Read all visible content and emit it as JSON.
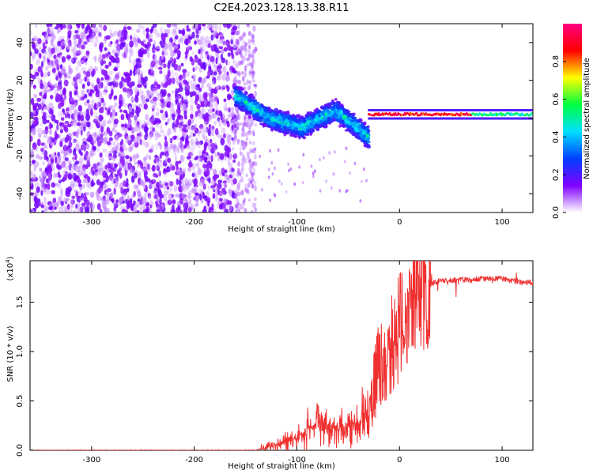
{
  "figure_title": "C2E4.2023.128.13.38.R11",
  "colors": {
    "series": "#f03030",
    "spectro_low": "#7b00ee",
    "spectro_mid": "#00e0d0",
    "spectro_high": "#ff2020"
  },
  "chart_data": [
    {
      "type": "heatmap",
      "title": "C2E4.2023.128.13.38.R11",
      "xlabel": "Height of straight line (km)",
      "ylabel": "Frequency (Hz)",
      "xlim": [
        -360,
        130
      ],
      "ylim": [
        -50,
        50
      ],
      "xticks": [
        -300,
        -200,
        -100,
        0,
        100
      ],
      "yticks": [
        -40,
        -20,
        0,
        20,
        40
      ],
      "grid": false,
      "colorbar": {
        "label": "Normalized spectral amplitude",
        "range": [
          0,
          1
        ],
        "ticks": [
          "0.0",
          "0.2",
          "0.4",
          "0.6",
          "0.8"
        ],
        "stops": [
          "#ffffff",
          "#8000ff",
          "#0040ff",
          "#00e0ff",
          "#00ff40",
          "#ffff00",
          "#ff0000",
          "#ff0080"
        ]
      },
      "regions": [
        {
          "description": "broadband noise",
          "x_range": [
            -360,
            -160
          ],
          "freq_range": [
            -50,
            50
          ],
          "amplitude": 0.05
        },
        {
          "description": "transition noise",
          "x_range": [
            -160,
            -140
          ],
          "freq_range": [
            -50,
            50
          ],
          "amplitude": 0.05
        },
        {
          "description": "signal band",
          "x_range": [
            -160,
            -30
          ],
          "center_freq": [
            12,
            0,
            -5,
            4,
            -10
          ],
          "half_width": 5,
          "amplitude": 0.3
        },
        {
          "description": "narrow carrier",
          "x_range": [
            -30,
            130
          ],
          "center_freq": 2,
          "half_width": 2,
          "amplitude": 0.9
        }
      ]
    },
    {
      "type": "line",
      "xlabel": "Height of straight line (km)",
      "ylabel": "SNR (10 * v/v)",
      "yscale_label": "(x10",
      "yscale_exp": "4",
      "yscale_close": ")",
      "xlim": [
        -360,
        130
      ],
      "ylim": [
        0,
        1.92
      ],
      "xticks": [
        -300,
        -200,
        -100,
        0,
        100
      ],
      "yticks": [
        "0.0",
        "0.5",
        "1.0",
        "1.5"
      ],
      "grid": false,
      "series": [
        {
          "name": "SNR",
          "color": "#f03030",
          "x": [
            -360,
            -300,
            -200,
            -140,
            -130,
            -120,
            -110,
            -100,
            -90,
            -80,
            -70,
            -60,
            -50,
            -40,
            -30,
            -25,
            -20,
            -15,
            -10,
            -5,
            0,
            5,
            10,
            15,
            20,
            25,
            30,
            35,
            40,
            50,
            60,
            70,
            80,
            90,
            100,
            110,
            120,
            130
          ],
          "values": [
            0.0,
            0.0,
            0.0,
            0.0,
            0.03,
            0.05,
            0.09,
            0.13,
            0.2,
            0.28,
            0.22,
            0.2,
            0.25,
            0.28,
            0.45,
            0.62,
            0.88,
            0.85,
            1.05,
            1.12,
            1.25,
            1.36,
            1.45,
            1.55,
            1.6,
            1.62,
            1.68,
            1.7,
            1.72,
            1.72,
            1.73,
            1.72,
            1.74,
            1.73,
            1.74,
            1.72,
            1.7,
            1.7
          ]
        }
      ]
    }
  ]
}
